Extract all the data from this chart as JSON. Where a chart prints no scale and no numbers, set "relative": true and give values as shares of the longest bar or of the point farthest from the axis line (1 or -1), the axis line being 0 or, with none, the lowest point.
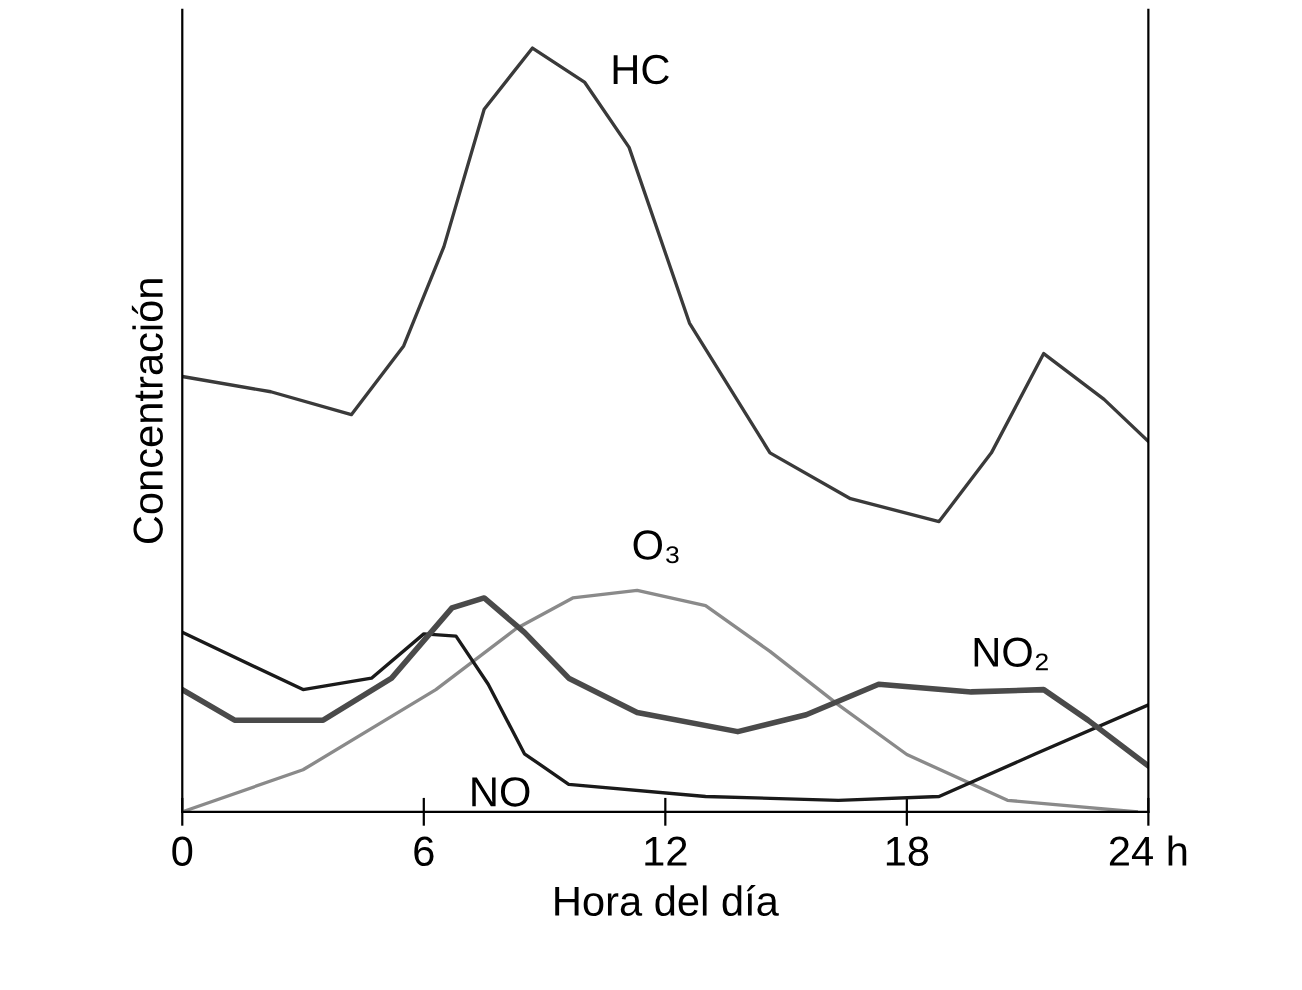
{
  "chart_data": {
    "type": "line",
    "relative": true,
    "xlabel": "Hora del día",
    "ylabel": "Concentración",
    "xlim": [
      0,
      24
    ],
    "xticks": [
      0,
      6,
      12,
      18,
      {
        "value": 24,
        "label": "24 h"
      }
    ],
    "tick_labels": "x",
    "grid": false,
    "legend": false,
    "marker": "none",
    "line_style": "solid",
    "series": [
      {
        "color": "#3a3a3a",
        "x": [
          0,
          2.2,
          4.2,
          5.5,
          6.5,
          7.5,
          8.7,
          10,
          11.1,
          12.6,
          14.6,
          16.6,
          18.8,
          20.1,
          21.4,
          22.9,
          24
        ],
        "values": [
          0.57,
          0.55,
          0.52,
          0.61,
          0.74,
          0.92,
          1.0,
          0.955,
          0.87,
          0.64,
          0.47,
          0.41,
          0.38,
          0.47,
          0.6,
          0.54,
          0.485
        ]
      },
      {
        "color": "#8a8a8a",
        "x": [
          0,
          3,
          6.3,
          8.3,
          9.7,
          11.3,
          13,
          14.6,
          16.3,
          18,
          20.5,
          23.7
        ],
        "values": [
          0.0,
          0.055,
          0.16,
          0.24,
          0.28,
          0.29,
          0.27,
          0.21,
          0.14,
          0.075,
          0.015,
          0.0
        ]
      },
      {
        "color": "#1a1a1a",
        "x": [
          0,
          3,
          4.7,
          6,
          6.8,
          7.6,
          8.5,
          9.6,
          13,
          16.3,
          18.8,
          21.2,
          24
        ],
        "values": [
          0.235,
          0.16,
          0.175,
          0.233,
          0.23,
          0.167,
          0.076,
          0.036,
          0.02,
          0.015,
          0.02,
          0.076,
          0.14
        ]
      },
      {
        "color": "#4a4a4a",
        "x": [
          0,
          1.3,
          3.5,
          5.2,
          6.7,
          7.5,
          8.5,
          9.6,
          11.3,
          13.8,
          15.5,
          17.3,
          19.6,
          21.4,
          22.5,
          24
        ],
        "values": [
          0.16,
          0.12,
          0.12,
          0.175,
          0.267,
          0.28,
          0.235,
          0.175,
          0.13,
          0.105,
          0.127,
          0.167,
          0.157,
          0.16,
          0.12,
          0.06
        ]
      }
    ],
    "annotations": [
      {
        "text": "HC",
        "x": 8.7,
        "y": 1.0
      },
      {
        "text": "O₃",
        "x": 11.3,
        "y": 0.29
      },
      {
        "text": "NO₂",
        "x": 19.6,
        "y": 0.157
      },
      {
        "text": "NO",
        "x": 8.5,
        "y": 0.076
      }
    ]
  }
}
